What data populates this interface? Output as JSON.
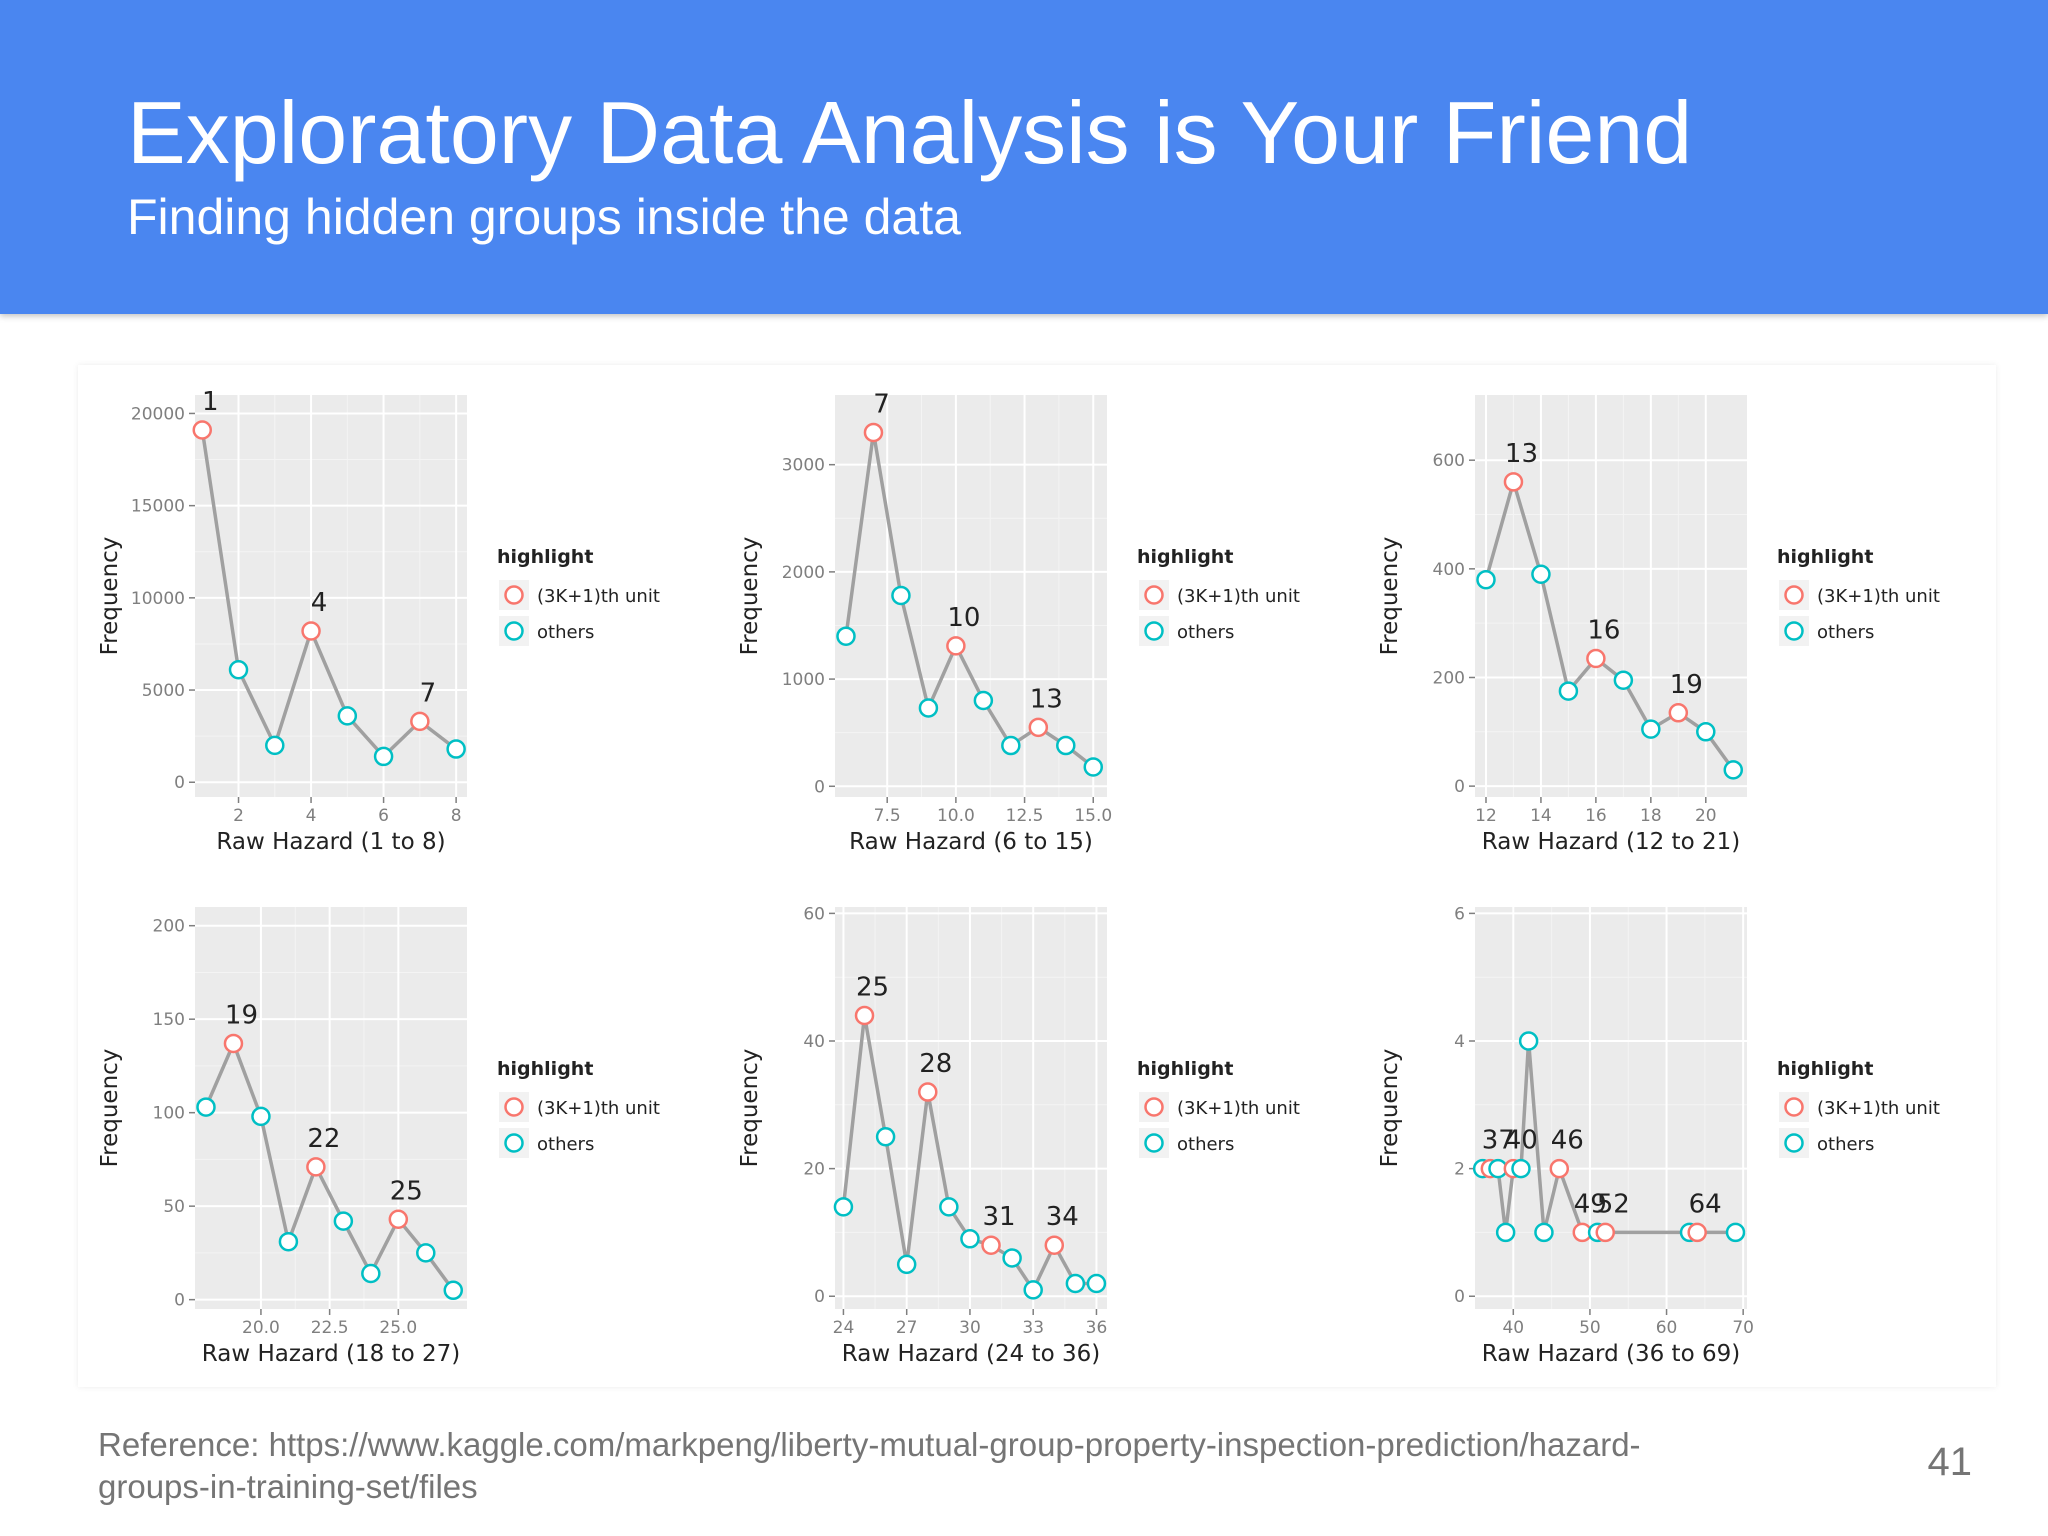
{
  "slide": {
    "title": "Exploratory Data Analysis is Your Friend",
    "subtitle": "Finding hidden groups inside the data",
    "reference": "Reference: https://www.kaggle.com/markpeng/liberty-mutual-group-property-inspection-prediction/hazard-groups-in-training-set/files",
    "page_number": "41"
  },
  "colors": {
    "header": "#4a86f0",
    "plot_bg": "#ebebeb",
    "line": "#a0a0a0",
    "highlight": "#f8766d",
    "others": "#00bfc4"
  },
  "legend": {
    "title": "highlight",
    "highlight_label": "(3K+1)th unit",
    "others_label": "others"
  },
  "chart_data": [
    {
      "type": "line",
      "xlabel": "Raw Hazard (1 to 8)",
      "ylabel": "Frequency",
      "xlim": [
        0.8,
        8.3
      ],
      "ylim": [
        -800,
        21000
      ],
      "xticks": [
        {
          "v": 2,
          "l": "2"
        },
        {
          "v": 4,
          "l": "4"
        },
        {
          "v": 6,
          "l": "6"
        },
        {
          "v": 8,
          "l": "8"
        }
      ],
      "yticks": [
        {
          "v": 0,
          "l": "0"
        },
        {
          "v": 5000,
          "l": "5000"
        },
        {
          "v": 10000,
          "l": "10000"
        },
        {
          "v": 15000,
          "l": "15000"
        },
        {
          "v": 20000,
          "l": "20000"
        }
      ],
      "points": [
        {
          "x": 1,
          "y": 19100,
          "h": true,
          "label": "1"
        },
        {
          "x": 2,
          "y": 6100,
          "h": false
        },
        {
          "x": 3,
          "y": 2000,
          "h": false
        },
        {
          "x": 4,
          "y": 8200,
          "h": true,
          "label": "4"
        },
        {
          "x": 5,
          "y": 3600,
          "h": false
        },
        {
          "x": 6,
          "y": 1400,
          "h": false
        },
        {
          "x": 7,
          "y": 3300,
          "h": true,
          "label": "7"
        },
        {
          "x": 8,
          "y": 1800,
          "h": false
        }
      ]
    },
    {
      "type": "line",
      "xlabel": "Raw Hazard (6 to 15)",
      "ylabel": "Frequency",
      "xlim": [
        5.6,
        15.5
      ],
      "ylim": [
        -100,
        3650
      ],
      "xticks": [
        {
          "v": 7.5,
          "l": "7.5"
        },
        {
          "v": 10,
          "l": "10.0"
        },
        {
          "v": 12.5,
          "l": "12.5"
        },
        {
          "v": 15,
          "l": "15.0"
        }
      ],
      "yticks": [
        {
          "v": 0,
          "l": "0"
        },
        {
          "v": 1000,
          "l": "1000"
        },
        {
          "v": 2000,
          "l": "2000"
        },
        {
          "v": 3000,
          "l": "3000"
        }
      ],
      "points": [
        {
          "x": 6,
          "y": 1400,
          "h": false
        },
        {
          "x": 7,
          "y": 3300,
          "h": true,
          "label": "7"
        },
        {
          "x": 8,
          "y": 1780,
          "h": false
        },
        {
          "x": 9,
          "y": 730,
          "h": false
        },
        {
          "x": 10,
          "y": 1310,
          "h": true,
          "label": "10"
        },
        {
          "x": 11,
          "y": 800,
          "h": false
        },
        {
          "x": 12,
          "y": 380,
          "h": false
        },
        {
          "x": 13,
          "y": 550,
          "h": true,
          "label": "13"
        },
        {
          "x": 14,
          "y": 380,
          "h": false
        },
        {
          "x": 15,
          "y": 180,
          "h": false
        }
      ]
    },
    {
      "type": "line",
      "xlabel": "Raw Hazard (12 to 21)",
      "ylabel": "Frequency",
      "xlim": [
        11.6,
        21.5
      ],
      "ylim": [
        -20,
        720
      ],
      "xticks": [
        {
          "v": 12,
          "l": "12"
        },
        {
          "v": 14,
          "l": "14"
        },
        {
          "v": 16,
          "l": "16"
        },
        {
          "v": 18,
          "l": "18"
        },
        {
          "v": 20,
          "l": "20"
        }
      ],
      "yticks": [
        {
          "v": 0,
          "l": "0"
        },
        {
          "v": 200,
          "l": "200"
        },
        {
          "v": 400,
          "l": "400"
        },
        {
          "v": 600,
          "l": "600"
        }
      ],
      "points": [
        {
          "x": 12,
          "y": 380,
          "h": false
        },
        {
          "x": 13,
          "y": 560,
          "h": true,
          "label": "13"
        },
        {
          "x": 14,
          "y": 390,
          "h": false
        },
        {
          "x": 15,
          "y": 175,
          "h": false
        },
        {
          "x": 16,
          "y": 235,
          "h": true,
          "label": "16"
        },
        {
          "x": 17,
          "y": 195,
          "h": false
        },
        {
          "x": 18,
          "y": 105,
          "h": false
        },
        {
          "x": 19,
          "y": 135,
          "h": true,
          "label": "19"
        },
        {
          "x": 20,
          "y": 100,
          "h": false
        },
        {
          "x": 21,
          "y": 30,
          "h": false
        }
      ]
    },
    {
      "type": "line",
      "xlabel": "Raw Hazard (18 to 27)",
      "ylabel": "Frequency",
      "xlim": [
        17.6,
        27.5
      ],
      "ylim": [
        -5,
        210
      ],
      "xticks": [
        {
          "v": 20,
          "l": "20.0"
        },
        {
          "v": 22.5,
          "l": "22.5"
        },
        {
          "v": 25,
          "l": "25.0"
        }
      ],
      "yticks": [
        {
          "v": 0,
          "l": "0"
        },
        {
          "v": 50,
          "l": "50"
        },
        {
          "v": 100,
          "l": "100"
        },
        {
          "v": 150,
          "l": "150"
        },
        {
          "v": 200,
          "l": "200"
        }
      ],
      "points": [
        {
          "x": 18,
          "y": 103,
          "h": false
        },
        {
          "x": 19,
          "y": 137,
          "h": true,
          "label": "19"
        },
        {
          "x": 20,
          "y": 98,
          "h": false
        },
        {
          "x": 21,
          "y": 31,
          "h": false
        },
        {
          "x": 22,
          "y": 71,
          "h": true,
          "label": "22"
        },
        {
          "x": 23,
          "y": 42,
          "h": false
        },
        {
          "x": 24,
          "y": 14,
          "h": false
        },
        {
          "x": 25,
          "y": 43,
          "h": true,
          "label": "25"
        },
        {
          "x": 26,
          "y": 25,
          "h": false
        },
        {
          "x": 27,
          "y": 5,
          "h": false
        }
      ]
    },
    {
      "type": "line",
      "xlabel": "Raw Hazard (24 to 36)",
      "ylabel": "Frequency",
      "xlim": [
        23.6,
        36.5
      ],
      "ylim": [
        -2,
        61
      ],
      "xticks": [
        {
          "v": 24,
          "l": "24"
        },
        {
          "v": 27,
          "l": "27"
        },
        {
          "v": 30,
          "l": "30"
        },
        {
          "v": 33,
          "l": "33"
        },
        {
          "v": 36,
          "l": "36"
        }
      ],
      "yticks": [
        {
          "v": 0,
          "l": "0"
        },
        {
          "v": 20,
          "l": "20"
        },
        {
          "v": 40,
          "l": "40"
        },
        {
          "v": 60,
          "l": "60"
        }
      ],
      "points": [
        {
          "x": 24,
          "y": 14,
          "h": false
        },
        {
          "x": 25,
          "y": 44,
          "h": true,
          "label": "25"
        },
        {
          "x": 26,
          "y": 25,
          "h": false
        },
        {
          "x": 27,
          "y": 5,
          "h": false
        },
        {
          "x": 28,
          "y": 32,
          "h": true,
          "label": "28"
        },
        {
          "x": 29,
          "y": 14,
          "h": false
        },
        {
          "x": 30,
          "y": 9,
          "h": false
        },
        {
          "x": 31,
          "y": 8,
          "h": true,
          "label": "31"
        },
        {
          "x": 32,
          "y": 6,
          "h": false
        },
        {
          "x": 33,
          "y": 1,
          "h": false
        },
        {
          "x": 34,
          "y": 8,
          "h": true,
          "label": "34"
        },
        {
          "x": 35,
          "y": 2,
          "h": false
        },
        {
          "x": 36,
          "y": 2,
          "h": false
        }
      ]
    },
    {
      "type": "line",
      "xlabel": "Raw Hazard (36 to 69)",
      "ylabel": "Frequency",
      "xlim": [
        35,
        70.5
      ],
      "ylim": [
        -0.2,
        6.1
      ],
      "xticks": [
        {
          "v": 40,
          "l": "40"
        },
        {
          "v": 50,
          "l": "50"
        },
        {
          "v": 60,
          "l": "60"
        },
        {
          "v": 70,
          "l": "70"
        }
      ],
      "yticks": [
        {
          "v": 0,
          "l": "0"
        },
        {
          "v": 2,
          "l": "2"
        },
        {
          "v": 4,
          "l": "4"
        },
        {
          "v": 6,
          "l": "6"
        }
      ],
      "points": [
        {
          "x": 36,
          "y": 2,
          "h": false
        },
        {
          "x": 37,
          "y": 2,
          "h": true,
          "label": "37"
        },
        {
          "x": 38,
          "y": 2,
          "h": false
        },
        {
          "x": 39,
          "y": 1,
          "h": false
        },
        {
          "x": 40,
          "y": 2,
          "h": true,
          "label": "40"
        },
        {
          "x": 41,
          "y": 2,
          "h": false
        },
        {
          "x": 42,
          "y": 4,
          "h": false
        },
        {
          "x": 44,
          "y": 1,
          "h": false
        },
        {
          "x": 46,
          "y": 2,
          "h": true,
          "label": "46"
        },
        {
          "x": 49,
          "y": 1,
          "h": true,
          "label": "49"
        },
        {
          "x": 51,
          "y": 1,
          "h": false
        },
        {
          "x": 52,
          "y": 1,
          "h": true,
          "label": "52"
        },
        {
          "x": 63,
          "y": 1,
          "h": false
        },
        {
          "x": 64,
          "y": 1,
          "h": true,
          "label": "64"
        },
        {
          "x": 69,
          "y": 1,
          "h": false
        }
      ]
    }
  ]
}
